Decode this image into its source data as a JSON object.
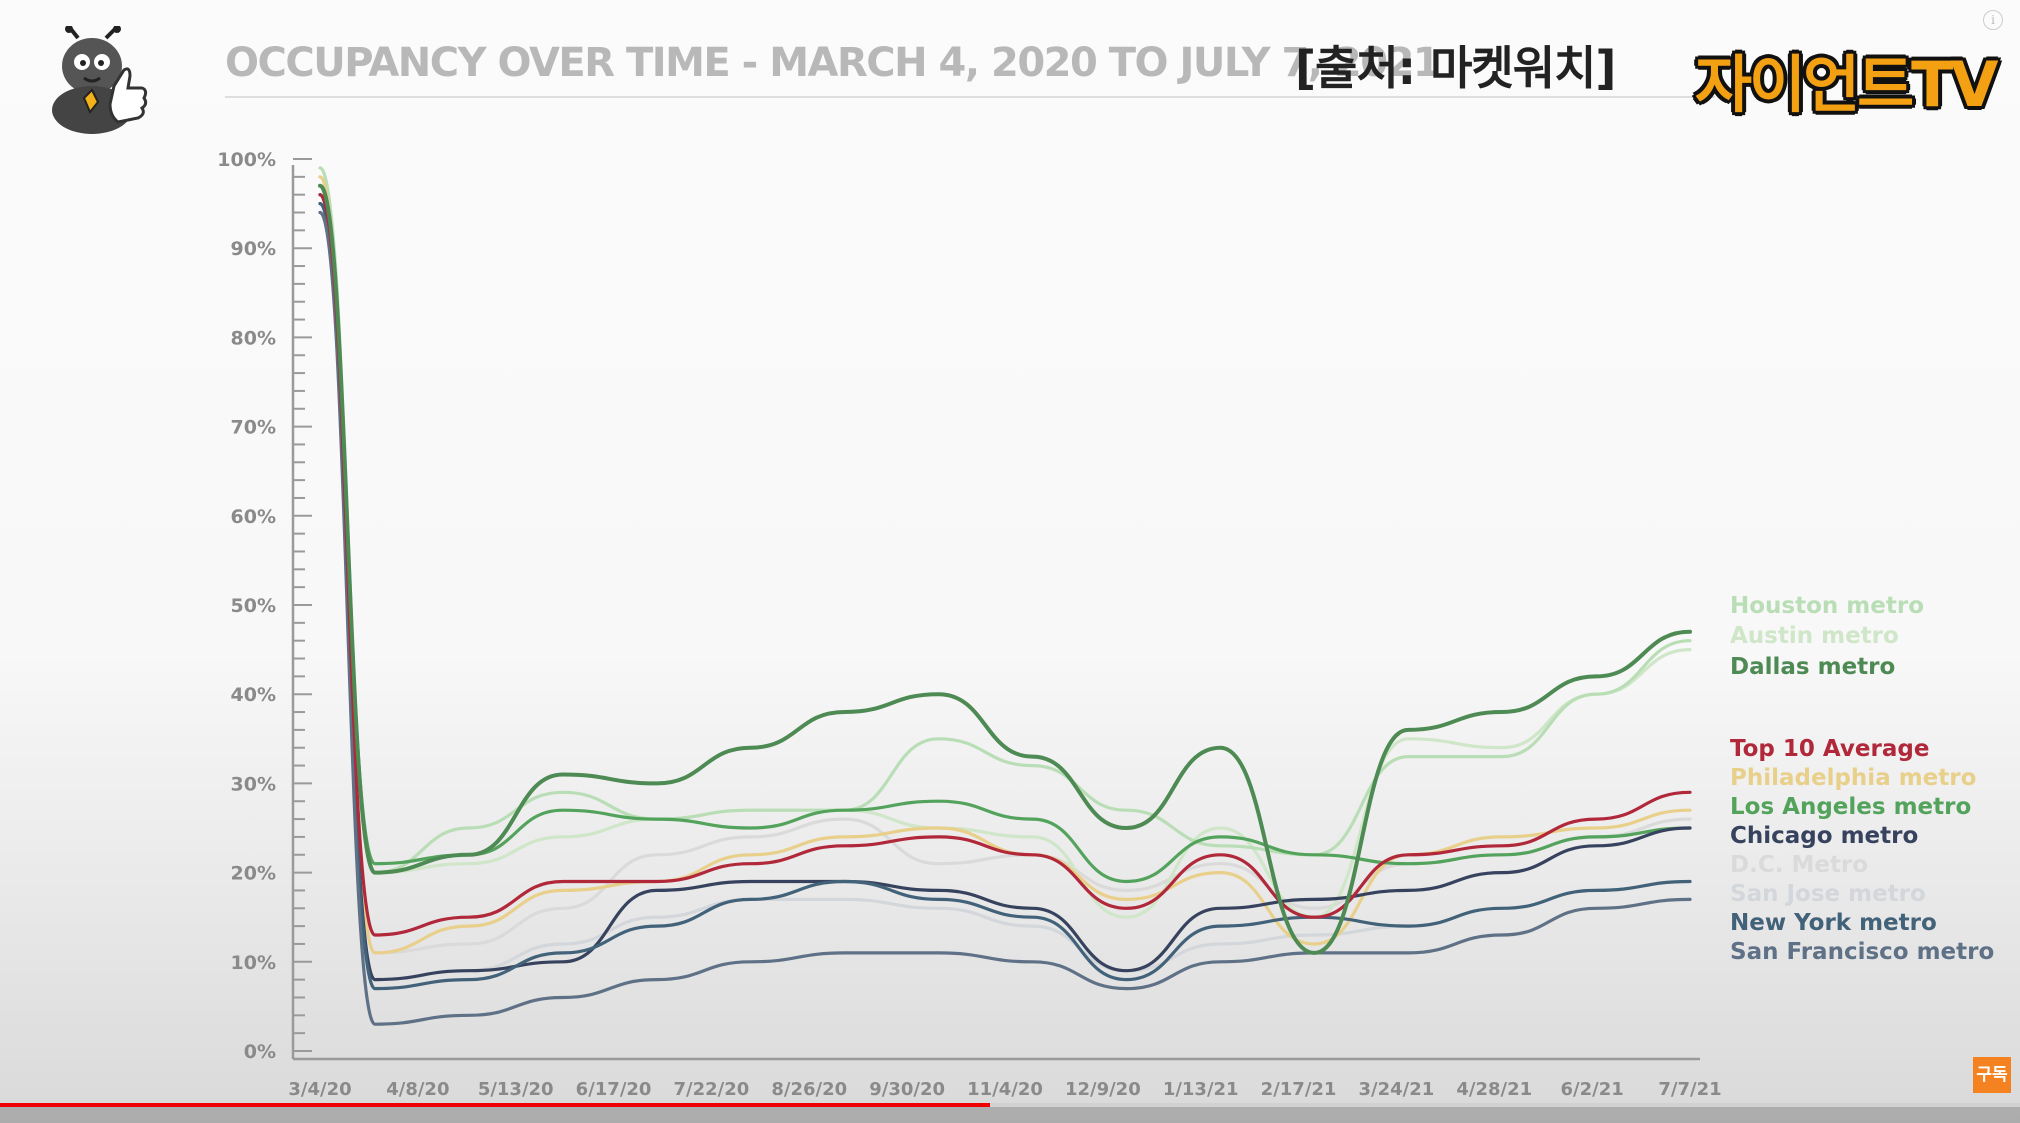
{
  "header": {
    "title": "OCCUPANCY OVER TIME - MARCH 4, 2020 TO JULY 7, 2021",
    "source": "[출처: 마켓워치]",
    "brand": "자이언트TV"
  },
  "player": {
    "subscribe_label": "구독",
    "progress": 0.49
  },
  "chart_data": {
    "type": "line",
    "title": "OCCUPANCY OVER TIME - MARCH 4, 2020 TO JULY 7, 2021",
    "xlabel": "",
    "ylabel": "",
    "x_ticks": [
      "3/4/20",
      "4/8/20",
      "5/13/20",
      "6/17/20",
      "7/22/20",
      "8/26/20",
      "9/30/20",
      "11/4/20",
      "12/9/20",
      "1/13/21",
      "2/17/21",
      "3/24/21",
      "4/28/21",
      "6/2/21",
      "7/7/21"
    ],
    "y_ticks": [
      "0%",
      "10%",
      "20%",
      "30%",
      "40%",
      "50%",
      "60%",
      "70%",
      "80%",
      "90%",
      "100%"
    ],
    "ylim": [
      0,
      100
    ],
    "grid": false,
    "legend": "right",
    "series": [
      {
        "name": "Houston metro",
        "color": "#b9deb6",
        "values": [
          99,
          20,
          25,
          29,
          26,
          27,
          27,
          35,
          32,
          27,
          23,
          22,
          33,
          33,
          40,
          46
        ]
      },
      {
        "name": "Austin metro",
        "color": "#cfe6c9",
        "values": [
          97,
          20,
          21,
          24,
          26,
          27,
          27,
          25,
          24,
          15,
          25,
          15,
          35,
          34,
          40,
          45
        ]
      },
      {
        "name": "Dallas metro",
        "color": "#4e8a53",
        "values": [
          97,
          20,
          22,
          31,
          30,
          34,
          38,
          40,
          33,
          25,
          34,
          11,
          36,
          38,
          42,
          47
        ]
      },
      {
        "name": "Top 10 Average",
        "color": "#b0283a",
        "values": [
          96,
          13,
          15,
          19,
          19,
          21,
          23,
          24,
          22,
          16,
          22,
          15,
          22,
          23,
          26,
          29
        ]
      },
      {
        "name": "Philadelphia metro",
        "color": "#e8cf8a",
        "values": [
          98,
          11,
          14,
          18,
          19,
          22,
          24,
          25,
          22,
          17,
          20,
          12,
          22,
          24,
          25,
          27
        ]
      },
      {
        "name": "Los Angeles metro",
        "color": "#54a35d",
        "values": [
          95,
          21,
          22,
          27,
          26,
          25,
          27,
          28,
          26,
          19,
          24,
          22,
          21,
          22,
          24,
          25
        ]
      },
      {
        "name": "Chicago metro",
        "color": "#37435e",
        "values": [
          96,
          8,
          9,
          10,
          18,
          19,
          19,
          18,
          16,
          9,
          16,
          17,
          18,
          20,
          23,
          25
        ]
      },
      {
        "name": "D.C. Metro",
        "color": "#dadada",
        "values": [
          95,
          11,
          12,
          16,
          22,
          24,
          26,
          21,
          22,
          18,
          21,
          16,
          21,
          22,
          24,
          26
        ]
      },
      {
        "name": "San Jose metro",
        "color": "#d3d6da",
        "values": [
          94,
          8,
          9,
          12,
          15,
          17,
          17,
          16,
          14,
          9,
          12,
          13,
          14,
          16,
          18,
          19
        ]
      },
      {
        "name": "New York metro",
        "color": "#42627a",
        "values": [
          95,
          7,
          8,
          11,
          14,
          17,
          19,
          17,
          15,
          8,
          14,
          15,
          14,
          16,
          18,
          19
        ]
      },
      {
        "name": "San Francisco metro",
        "color": "#5f7186",
        "values": [
          94,
          3,
          4,
          6,
          8,
          10,
          11,
          11,
          10,
          7,
          10,
          11,
          11,
          13,
          16,
          17
        ]
      }
    ]
  }
}
